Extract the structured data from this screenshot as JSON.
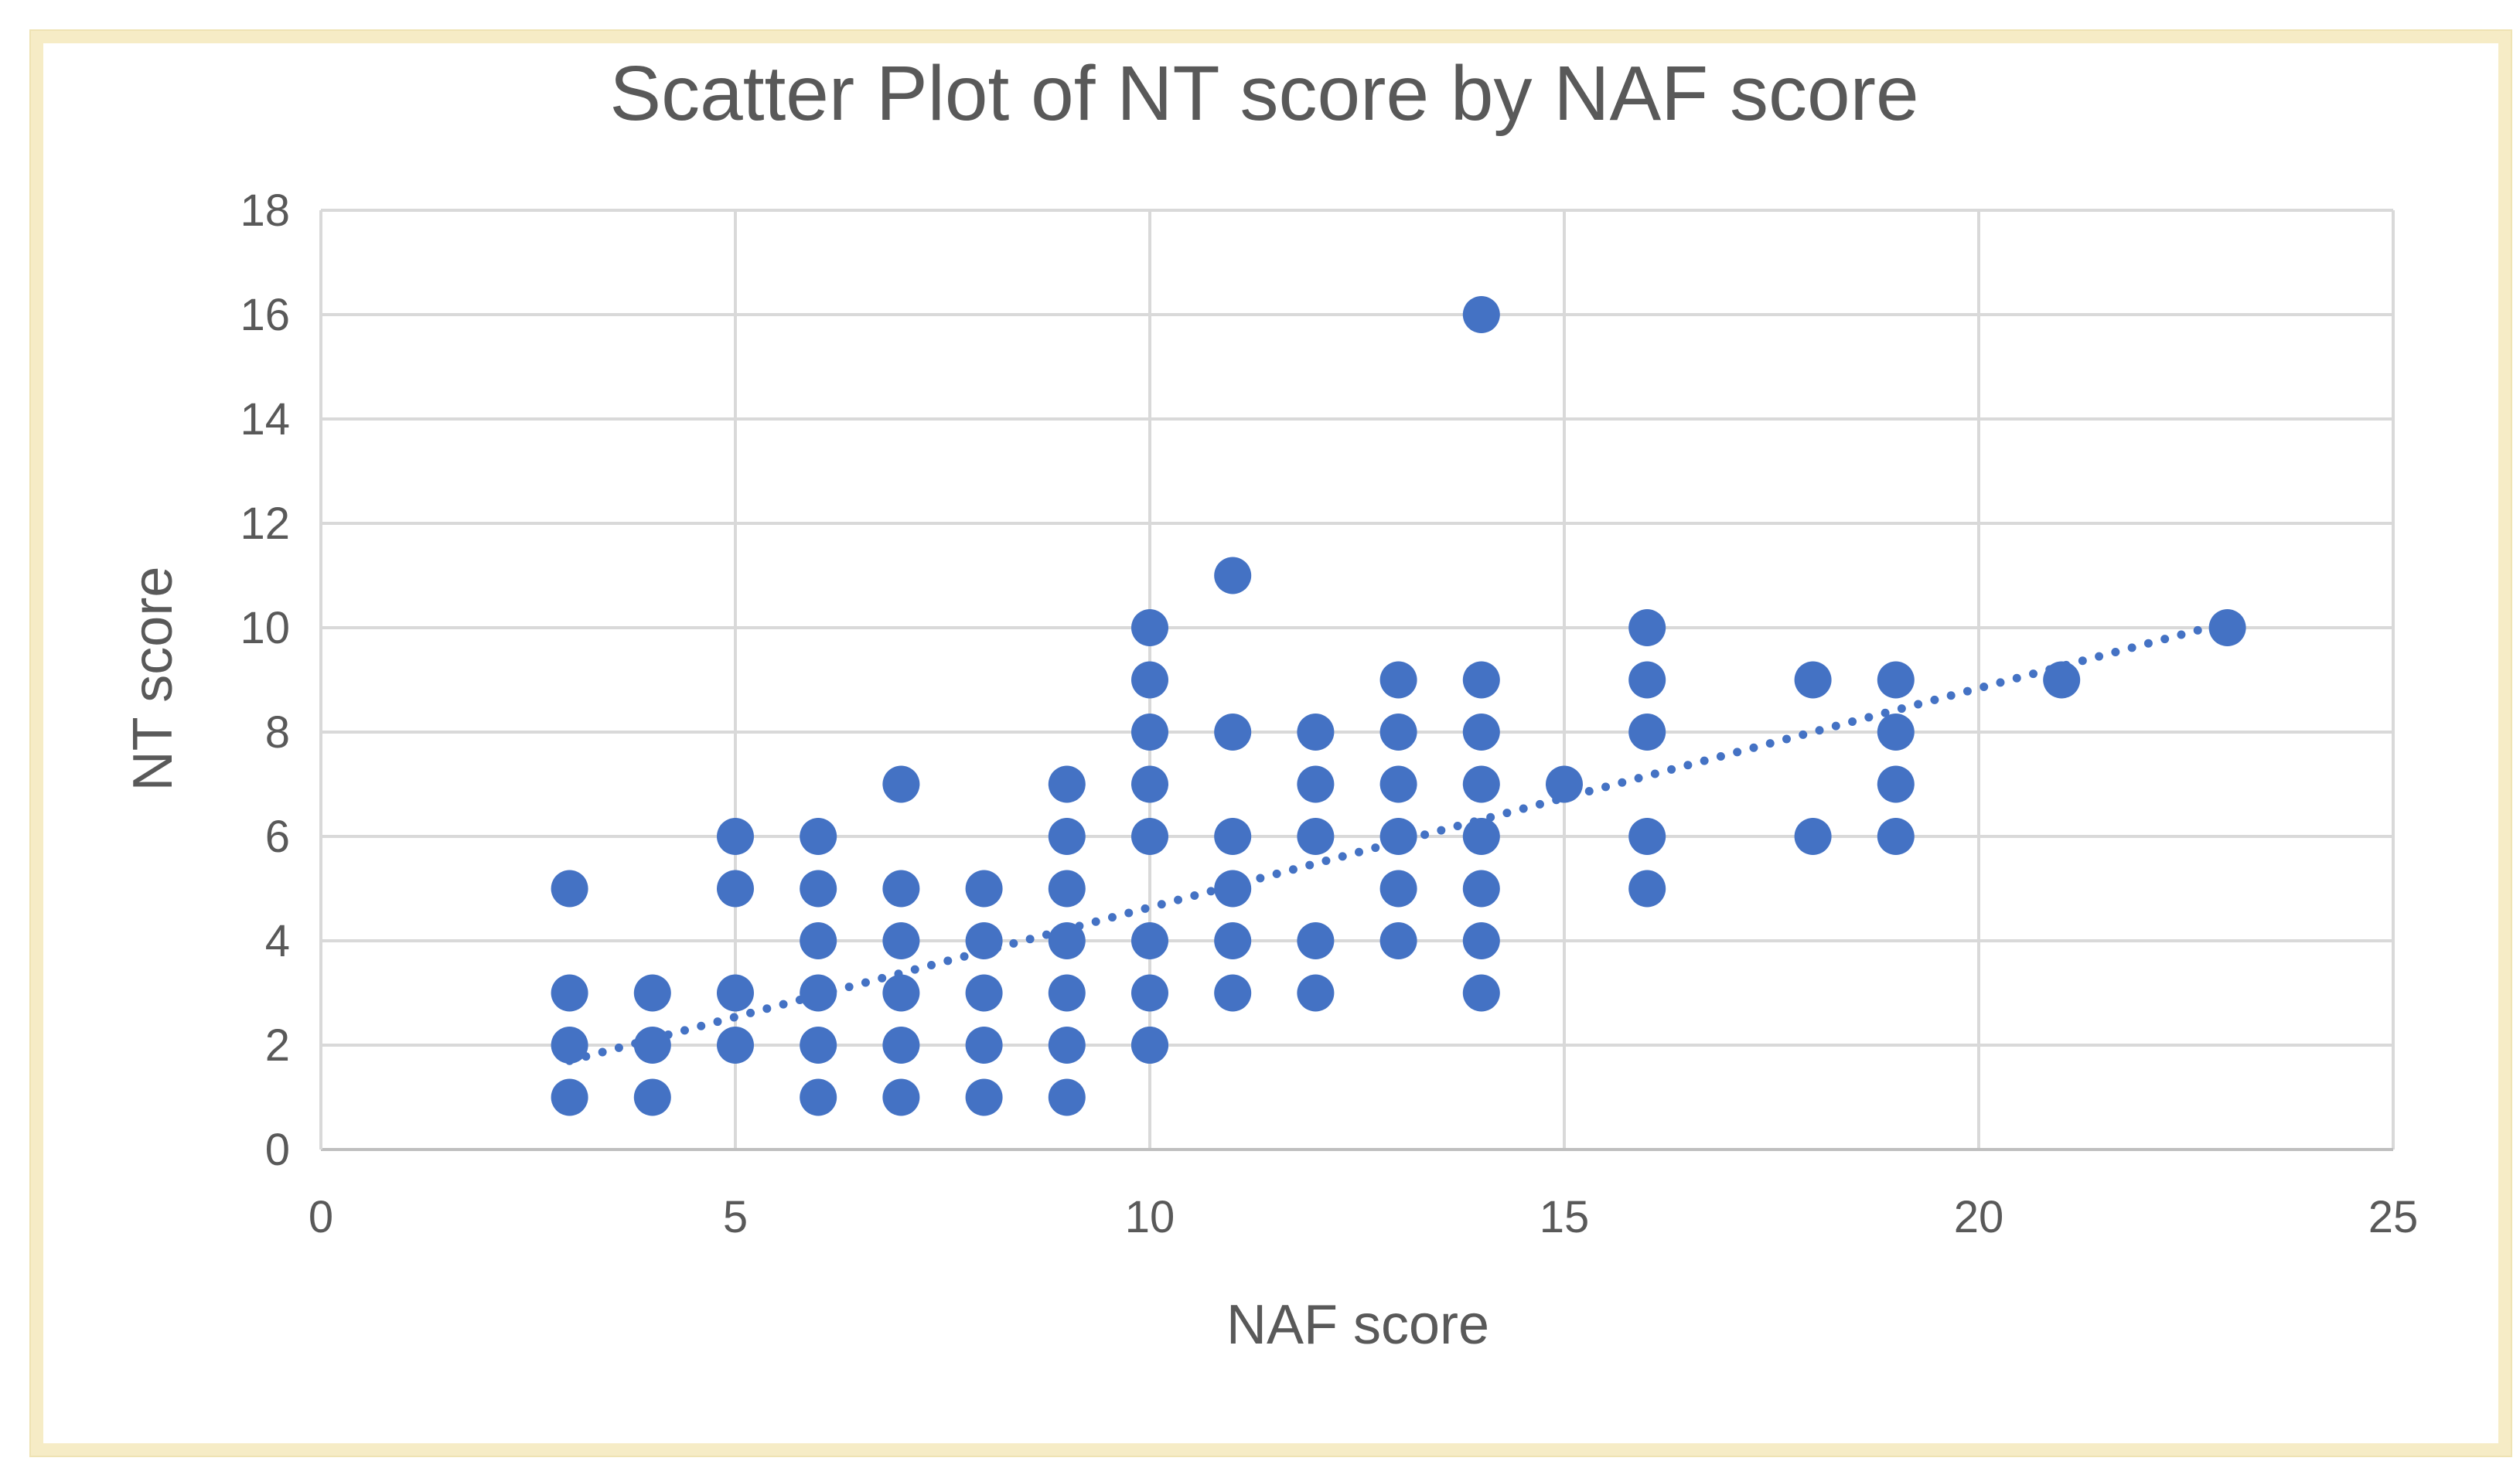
{
  "chart_data": {
    "type": "scatter",
    "title": "Scatter Plot of NT score by NAF score",
    "xlabel": "NAF score",
    "ylabel": "NT score",
    "xlim": [
      0,
      25
    ],
    "ylim": [
      0,
      18
    ],
    "x_ticks": [
      0,
      5,
      10,
      15,
      20,
      25
    ],
    "y_ticks": [
      0,
      2,
      4,
      6,
      8,
      10,
      12,
      14,
      16,
      18
    ],
    "x_tick_labels": [
      "0",
      "5",
      "10",
      "15",
      "20",
      "25"
    ],
    "y_tick_labels": [
      "0",
      "2",
      "4",
      "6",
      "8",
      "10",
      "12",
      "14",
      "16",
      "18"
    ],
    "grid": true,
    "legend": "none",
    "point_color": "#4472c4",
    "grid_color": "#d9d9d9",
    "series": [
      {
        "x": [
          3,
          3,
          3,
          3,
          4,
          4,
          4,
          5,
          5,
          5,
          5,
          6,
          6,
          6,
          6,
          6,
          6,
          7,
          7,
          7,
          7,
          7,
          7,
          8,
          8,
          8,
          8,
          8,
          9,
          9,
          9,
          9,
          9,
          9,
          9,
          10,
          10,
          10,
          10,
          10,
          10,
          10,
          10,
          10,
          11,
          11,
          11,
          11,
          11,
          11,
          12,
          12,
          12,
          12,
          12,
          13,
          13,
          13,
          13,
          13,
          13,
          14,
          14,
          14,
          14,
          14,
          14,
          14,
          14,
          15,
          16,
          16,
          16,
          16,
          16,
          18,
          18,
          19,
          19,
          19,
          19,
          21,
          23
        ],
        "y": [
          1,
          2,
          3,
          5,
          1,
          2,
          3,
          2,
          3,
          5,
          6,
          1,
          2,
          3,
          4,
          5,
          6,
          1,
          2,
          3,
          4,
          5,
          7,
          1,
          2,
          3,
          4,
          5,
          1,
          2,
          3,
          4,
          5,
          6,
          7,
          2,
          3,
          4,
          6,
          7,
          8,
          9,
          10,
          2,
          3,
          4,
          5,
          6,
          8,
          11,
          3,
          4,
          6,
          7,
          8,
          4,
          5,
          6,
          7,
          8,
          9,
          3,
          4,
          5,
          6,
          7,
          8,
          9,
          16,
          7,
          5,
          6,
          8,
          9,
          10,
          6,
          9,
          6,
          7,
          8,
          9,
          9,
          10
        ]
      }
    ],
    "trendline": {
      "type": "linear",
      "style": "dotted",
      "x_range": [
        3,
        23
      ],
      "y_range": [
        1.7,
        10.1
      ]
    }
  }
}
